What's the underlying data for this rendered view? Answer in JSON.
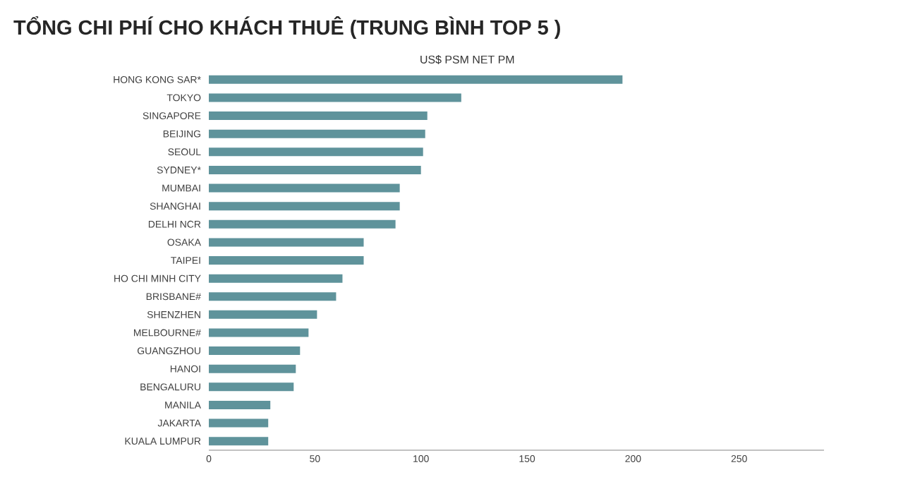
{
  "chart_data": {
    "type": "bar",
    "orientation": "horizontal",
    "title": "TỔNG CHI PHÍ CHO KHÁCH THUÊ (TRUNG BÌNH TOP 5 )",
    "xlabel": "US$ PSM NET PM",
    "categories": [
      "HONG KONG SAR*",
      "TOKYO",
      "SINGAPORE",
      "BEIJING",
      "SEOUL",
      "SYDNEY*",
      "MUMBAI",
      "SHANGHAI",
      "DELHI NCR",
      "OSAKA",
      "TAIPEI",
      "HO CHI MINH CITY",
      "BRISBANE#",
      "SHENZHEN",
      "MELBOURNE#",
      "GUANGZHOU",
      "HANOI",
      "BENGALURU",
      "MANILA",
      "JAKARTA",
      "KUALA LUMPUR"
    ],
    "values": [
      195,
      119,
      103,
      102,
      101,
      100,
      90,
      90,
      88,
      73,
      73,
      63,
      60,
      51,
      47,
      43,
      41,
      40,
      29,
      28,
      28
    ],
    "color": "#5f939b",
    "xlim": [
      0,
      290
    ],
    "xticks": [
      0,
      50,
      100,
      150,
      200,
      250
    ]
  }
}
